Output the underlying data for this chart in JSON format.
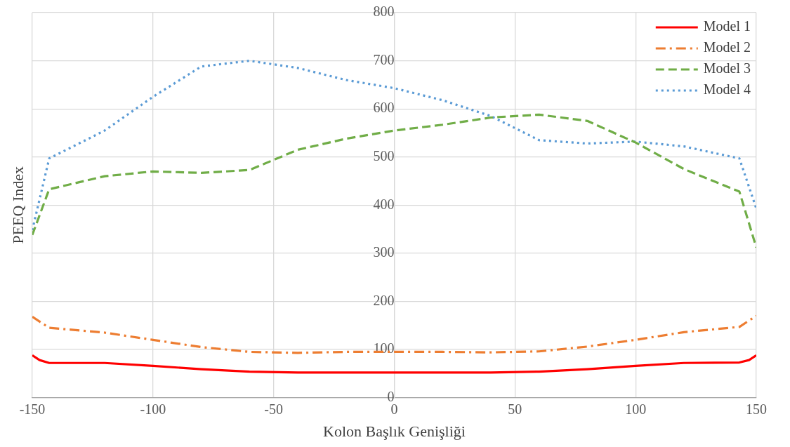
{
  "chart_data": {
    "type": "line",
    "xlabel": "Kolon Başlık Genişliği",
    "ylabel": "PEEQ Index",
    "xlim": [
      -150,
      150
    ],
    "xticks": [
      -150,
      -100,
      -50,
      0,
      50,
      100,
      150
    ],
    "ylim": [
      0,
      800
    ],
    "yticks": [
      0,
      100,
      200,
      300,
      400,
      500,
      600,
      700,
      800
    ],
    "grid": true,
    "legend": "top right",
    "marker": "none",
    "x": [
      -150,
      -147,
      -143,
      -120,
      -100,
      -80,
      -60,
      -40,
      -20,
      0,
      20,
      40,
      60,
      80,
      100,
      120,
      143,
      147,
      150
    ],
    "series": [
      {
        "name": "Model 1",
        "color": "#ff0000",
        "line_style": "solid",
        "values": [
          88,
          78,
          72,
          72,
          66,
          59,
          54,
          52,
          52,
          52,
          52,
          52,
          54,
          59,
          66,
          72,
          73,
          78,
          88
        ]
      },
      {
        "name": "Model 2",
        "color": "#ed7d31",
        "line_style": "dashdot",
        "x": [
          -150,
          -143,
          -120,
          -100,
          -80,
          -60,
          -40,
          -20,
          0,
          20,
          40,
          60,
          80,
          100,
          120,
          143,
          150
        ],
        "values": [
          168,
          145,
          135,
          120,
          105,
          95,
          93,
          95,
          95,
          95,
          94,
          96,
          106,
          120,
          136,
          147,
          170
        ]
      },
      {
        "name": "Model 3",
        "color": "#70ad47",
        "line_style": "dashed",
        "x": [
          -150,
          -143,
          -120,
          -100,
          -80,
          -60,
          -40,
          -20,
          0,
          20,
          40,
          60,
          80,
          100,
          120,
          143,
          150
        ],
        "values": [
          338,
          433,
          460,
          470,
          467,
          473,
          515,
          538,
          555,
          567,
          582,
          588,
          575,
          530,
          475,
          428,
          312
        ]
      },
      {
        "name": "Model 4",
        "color": "#5b9bd5",
        "line_style": "dotted",
        "x": [
          -150,
          -143,
          -120,
          -100,
          -80,
          -60,
          -40,
          -20,
          0,
          20,
          40,
          60,
          80,
          100,
          120,
          143,
          150
        ],
        "values": [
          348,
          497,
          555,
          625,
          688,
          700,
          685,
          660,
          643,
          618,
          585,
          535,
          528,
          532,
          522,
          497,
          393
        ]
      }
    ]
  }
}
